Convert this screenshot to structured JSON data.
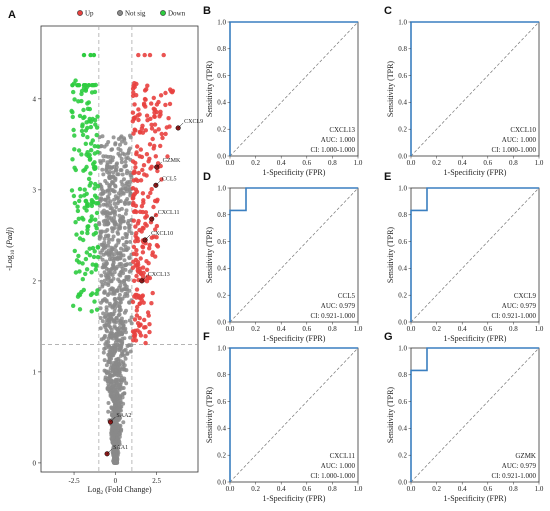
{
  "chart_data": [
    {
      "panel_label": "A",
      "type": "scatter",
      "xlabel": "Log2 (Fold Change)",
      "ylabel": "-Log10 (Padj)",
      "xlim": [
        -4.5,
        5.0
      ],
      "ylim": [
        -0.1,
        4.8
      ],
      "xticks": [
        "-2.5",
        "0",
        "2.5"
      ],
      "yticks": [
        "0",
        "1",
        "2",
        "3",
        "4"
      ],
      "thresholds": {
        "x": [
          -1,
          1
        ],
        "y": 1.3
      },
      "legend_position": "top",
      "series": [
        {
          "name": "Up",
          "color": "#e8413f"
        },
        {
          "name": "Not sig",
          "color": "#8a8a8a"
        },
        {
          "name": "Down",
          "color": "#2ecc40"
        }
      ],
      "labeled_points": [
        {
          "label": "CXCL9",
          "x": 3.8,
          "y": 3.68
        },
        {
          "label": "GZMK",
          "x": 2.5,
          "y": 3.25
        },
        {
          "label": "CCL5",
          "x": 2.45,
          "y": 3.05
        },
        {
          "label": "CXCL11",
          "x": 2.2,
          "y": 2.68
        },
        {
          "label": "CXCL10",
          "x": 1.8,
          "y": 2.45
        },
        {
          "label": "CXCL13",
          "x": 1.6,
          "y": 2.0
        },
        {
          "label": "SAA2",
          "x": -0.3,
          "y": 0.45
        },
        {
          "label": "SAA1",
          "x": -0.5,
          "y": 0.1
        }
      ]
    },
    {
      "panel_label": "B",
      "type": "line",
      "series": [
        {
          "x": [
            0,
            0,
            1
          ],
          "y": [
            0,
            1,
            1
          ]
        }
      ],
      "xlabel": "1-Specificity (FPR)",
      "ylabel": "Sensitivity (TPR)",
      "xlim": [
        0,
        1
      ],
      "ylim": [
        0,
        1
      ],
      "ticks": [
        "0.0",
        "0.2",
        "0.4",
        "0.6",
        "0.8",
        "1.0"
      ],
      "gene": "CXCL13",
      "auc": "AUC: 1.000",
      "ci": "CI: 1.000-1.000"
    },
    {
      "panel_label": "C",
      "type": "line",
      "series": [
        {
          "x": [
            0,
            0,
            1
          ],
          "y": [
            0,
            1,
            1
          ]
        }
      ],
      "xlabel": "1-Specificity (FPR)",
      "ylabel": "Sensitivity (TPR)",
      "xlim": [
        0,
        1
      ],
      "ylim": [
        0,
        1
      ],
      "ticks": [
        "0.0",
        "0.2",
        "0.4",
        "0.6",
        "0.8",
        "1.0"
      ],
      "gene": "CXCL10",
      "auc": "AUC: 1.000",
      "ci": "CI: 1.000-1.000"
    },
    {
      "panel_label": "D",
      "type": "line",
      "series": [
        {
          "x": [
            0,
            0,
            0.125,
            0.125,
            1
          ],
          "y": [
            0,
            0.833,
            0.833,
            1,
            1
          ]
        }
      ],
      "xlabel": "1-Specificity (FPR)",
      "ylabel": "Sensitivity (TPR)",
      "xlim": [
        0,
        1
      ],
      "ylim": [
        0,
        1
      ],
      "ticks": [
        "0.0",
        "0.2",
        "0.4",
        "0.6",
        "0.8",
        "1.0"
      ],
      "gene": "CCL5",
      "auc": "AUC: 0.979",
      "ci": "CI: 0.921-1.000"
    },
    {
      "panel_label": "E",
      "type": "line",
      "series": [
        {
          "x": [
            0,
            0,
            0.125,
            0.125,
            1
          ],
          "y": [
            0,
            0.833,
            0.833,
            1,
            1
          ]
        }
      ],
      "xlabel": "1-Specificity (FPR)",
      "ylabel": "Sensitivity (TPR)",
      "xlim": [
        0,
        1
      ],
      "ylim": [
        0,
        1
      ],
      "ticks": [
        "0.0",
        "0.2",
        "0.4",
        "0.6",
        "0.8",
        "1.0"
      ],
      "gene": "CXCL9",
      "auc": "AUC: 0.979",
      "ci": "CI: 0.921-1.000"
    },
    {
      "panel_label": "F",
      "type": "line",
      "series": [
        {
          "x": [
            0,
            0,
            1
          ],
          "y": [
            0,
            1,
            1
          ]
        }
      ],
      "xlabel": "1-Specificity (FPR)",
      "ylabel": "Sensitivity (TPR)",
      "xlim": [
        0,
        1
      ],
      "ylim": [
        0,
        1
      ],
      "ticks": [
        "0.0",
        "0.2",
        "0.4",
        "0.6",
        "0.8",
        "1.0"
      ],
      "gene": "CXCL11",
      "auc": "AUC: 1.000",
      "ci": "CI: 1.000-1.000"
    },
    {
      "panel_label": "G",
      "type": "line",
      "series": [
        {
          "x": [
            0,
            0,
            0.125,
            0.125,
            1
          ],
          "y": [
            0,
            0.833,
            0.833,
            1,
            1
          ]
        }
      ],
      "xlabel": "1-Specificity (FPR)",
      "ylabel": "Sensitivity (TPR)",
      "xlim": [
        0,
        1
      ],
      "ylim": [
        0,
        1
      ],
      "ticks": [
        "0.0",
        "0.2",
        "0.4",
        "0.6",
        "0.8",
        "1.0"
      ],
      "gene": "GZMK",
      "auc": "AUC: 0.979",
      "ci": "CI: 0.921-1.000"
    }
  ],
  "style": {
    "roc_color": "#3a7fc0",
    "diag_color": "#777777",
    "threshold_color": "#aaaaaa",
    "label_point_color": "#8b1a1a"
  }
}
